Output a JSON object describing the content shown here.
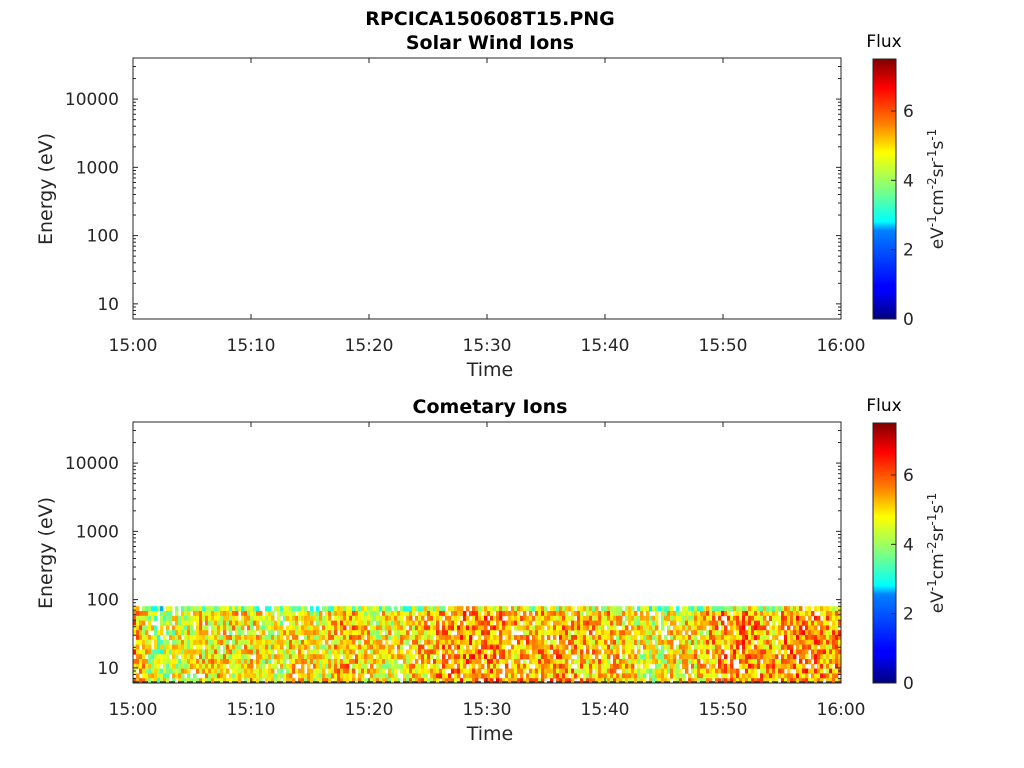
{
  "figure_title": "RPCICA150608T15.PNG",
  "colorbar": {
    "title": "Flux",
    "unit_base": "eV",
    "unit_parts": [
      {
        "base": "eV",
        "exp": "-1"
      },
      {
        "base": "cm",
        "exp": "-2"
      },
      {
        "base": "sr",
        "exp": "-1"
      },
      {
        "base": "s",
        "exp": "-1"
      }
    ],
    "ticks": [
      "0",
      "2",
      "4",
      "6"
    ],
    "range": [
      0,
      7.5
    ],
    "colormap": "jet"
  },
  "chart_data": [
    {
      "type": "heatmap",
      "title": "Solar Wind Ions",
      "xlabel": "Time",
      "ylabel": "Energy (eV)",
      "x_ticks": [
        "15:00",
        "15:10",
        "15:20",
        "15:30",
        "15:40",
        "15:50",
        "16:00"
      ],
      "x_range": [
        "15:00",
        "16:00"
      ],
      "y_ticks": [
        "10",
        "100",
        "1000",
        "10000"
      ],
      "y_scale": "log",
      "y_range": [
        6,
        40000
      ],
      "grid": false,
      "data": "empty"
    },
    {
      "type": "heatmap",
      "title": "Cometary Ions",
      "xlabel": "Time",
      "ylabel": "Energy (eV)",
      "x_ticks": [
        "15:00",
        "15:10",
        "15:20",
        "15:30",
        "15:40",
        "15:50",
        "16:00"
      ],
      "x_range": [
        "15:00",
        "16:00"
      ],
      "y_ticks": [
        "10",
        "100",
        "1000",
        "10000"
      ],
      "y_scale": "log",
      "y_range": [
        6,
        40000
      ],
      "grid": false,
      "energy_range_filled": [
        6,
        80
      ],
      "flux_profile": [
        {
          "time": "15:00",
          "flux": 5.5
        },
        {
          "time": "15:02",
          "flux": 4.0
        },
        {
          "time": "15:04",
          "flux": 4.6
        },
        {
          "time": "15:06",
          "flux": 4.9
        },
        {
          "time": "15:08",
          "flux": 4.8
        },
        {
          "time": "15:10",
          "flux": 4.8
        },
        {
          "time": "15:12",
          "flux": 4.5
        },
        {
          "time": "15:14",
          "flux": 4.9
        },
        {
          "time": "15:16",
          "flux": 4.6
        },
        {
          "time": "15:18",
          "flux": 5.3
        },
        {
          "time": "15:20",
          "flux": 4.8
        },
        {
          "time": "15:22",
          "flux": 4.6
        },
        {
          "time": "15:24",
          "flux": 5.0
        },
        {
          "time": "15:26",
          "flux": 5.3
        },
        {
          "time": "15:28",
          "flux": 5.5
        },
        {
          "time": "15:30",
          "flux": 5.6
        },
        {
          "time": "15:32",
          "flux": 5.3
        },
        {
          "time": "15:34",
          "flux": 5.2
        },
        {
          "time": "15:36",
          "flux": 5.4
        },
        {
          "time": "15:38",
          "flux": 5.1
        },
        {
          "time": "15:40",
          "flux": 5.1
        },
        {
          "time": "15:42",
          "flux": 4.9
        },
        {
          "time": "15:44",
          "flux": 4.4
        },
        {
          "time": "15:46",
          "flux": 4.8
        },
        {
          "time": "15:48",
          "flux": 5.0
        },
        {
          "time": "15:50",
          "flux": 5.4
        },
        {
          "time": "15:52",
          "flux": 5.5
        },
        {
          "time": "15:54",
          "flux": 5.2
        },
        {
          "time": "15:56",
          "flux": 5.6
        },
        {
          "time": "15:58",
          "flux": 5.4
        },
        {
          "time": "16:00",
          "flux": 5.3
        }
      ]
    }
  ]
}
